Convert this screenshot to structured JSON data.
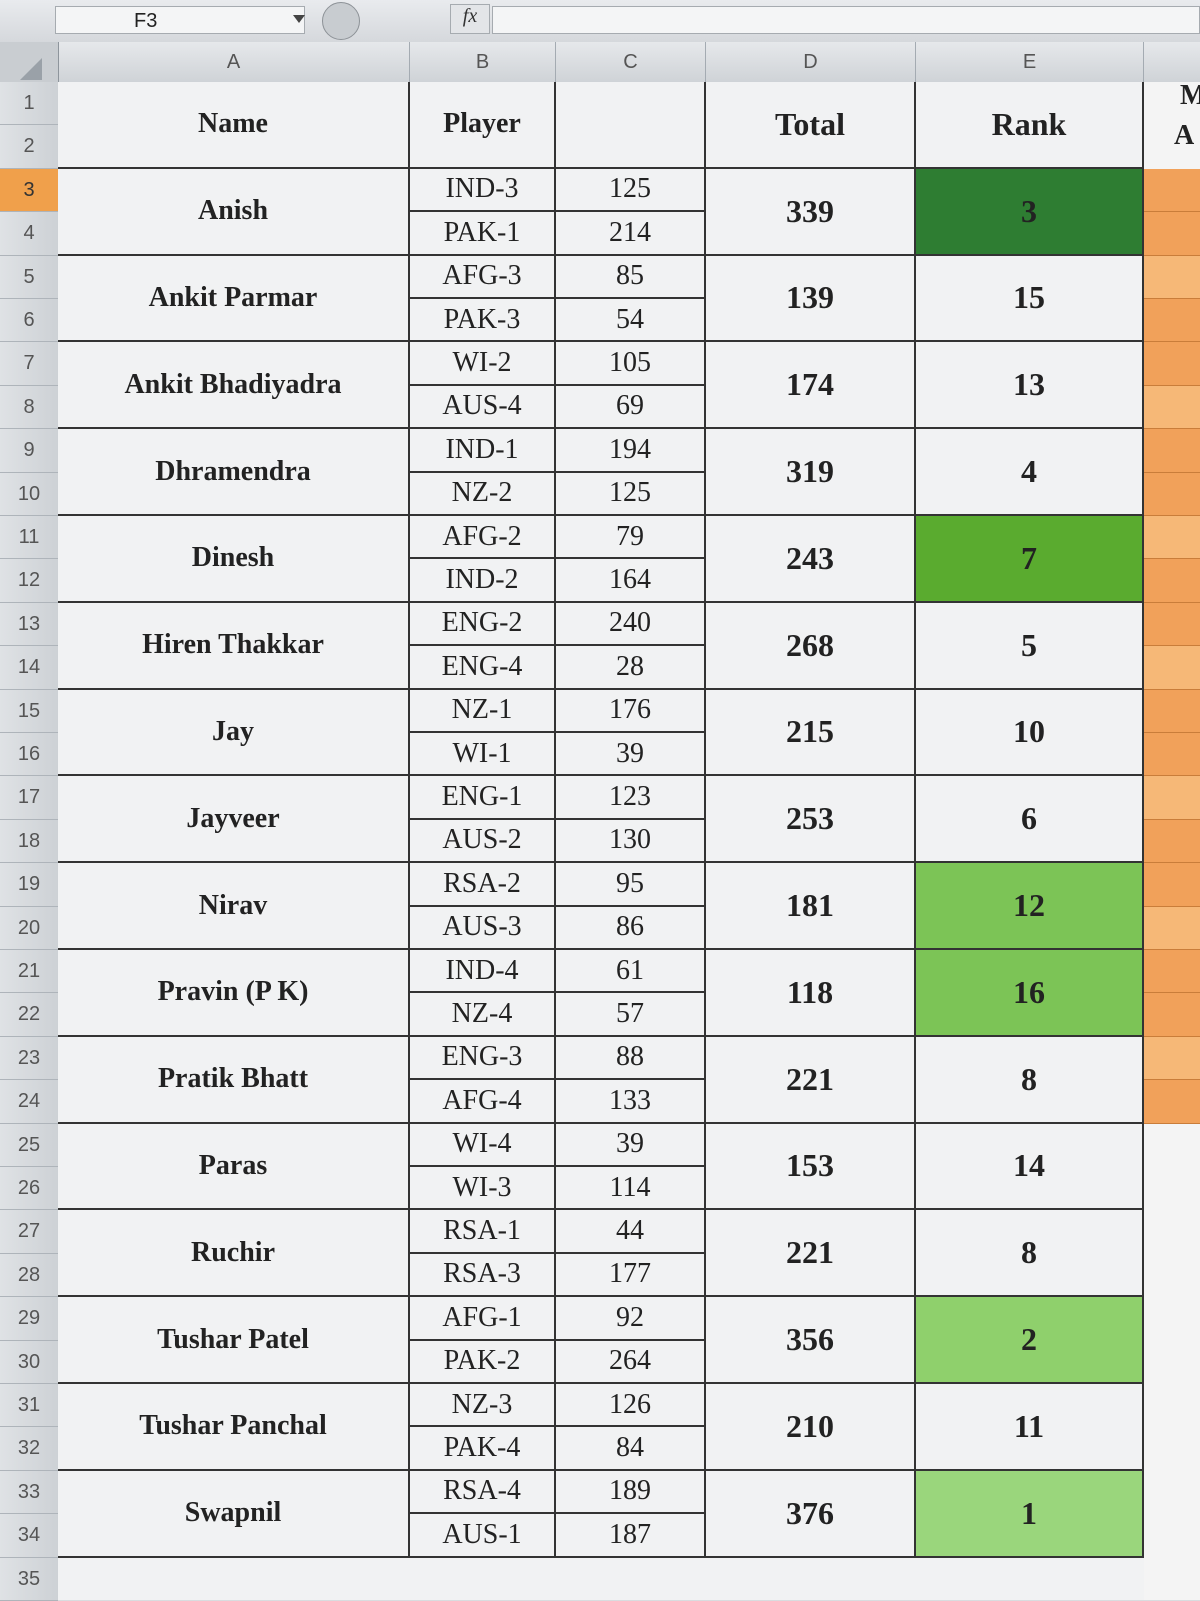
{
  "formula_bar": {
    "name_box": "F3",
    "fx": "fx"
  },
  "columns": [
    "A",
    "B",
    "C",
    "D",
    "E"
  ],
  "rows": [
    "1",
    "2",
    "3",
    "4",
    "5",
    "6",
    "7",
    "8",
    "9",
    "10",
    "11",
    "12",
    "13",
    "14",
    "15",
    "16",
    "17",
    "18",
    "19",
    "20",
    "21",
    "22",
    "23",
    "24",
    "25",
    "26",
    "27",
    "28",
    "29",
    "30",
    "31",
    "32",
    "33",
    "34",
    "35"
  ],
  "headers": {
    "name": "Name",
    "player": "Player",
    "total": "Total",
    "rank": "Rank",
    "f1": "M",
    "f2": "A"
  },
  "entries": [
    {
      "name": "Anish",
      "players": [
        "IND-3",
        "PAK-1"
      ],
      "scores": [
        "125",
        "214"
      ],
      "total": "339",
      "rank": "3",
      "rank_color": "#2e7d32"
    },
    {
      "name": "Ankit Parmar",
      "players": [
        "AFG-3",
        "PAK-3"
      ],
      "scores": [
        "85",
        "54"
      ],
      "total": "139",
      "rank": "15",
      "rank_color": ""
    },
    {
      "name": "Ankit Bhadiyadra",
      "players": [
        "WI-2",
        "AUS-4"
      ],
      "scores": [
        "105",
        "69"
      ],
      "total": "174",
      "rank": "13",
      "rank_color": ""
    },
    {
      "name": "Dhramendra",
      "players": [
        "IND-1",
        "NZ-2"
      ],
      "scores": [
        "194",
        "125"
      ],
      "total": "319",
      "rank": "4",
      "rank_color": ""
    },
    {
      "name": "Dinesh",
      "players": [
        "AFG-2",
        "IND-2"
      ],
      "scores": [
        "79",
        "164"
      ],
      "total": "243",
      "rank": "7",
      "rank_color": "#5aab2f"
    },
    {
      "name": "Hiren Thakkar",
      "players": [
        "ENG-2",
        "ENG-4"
      ],
      "scores": [
        "240",
        "28"
      ],
      "total": "268",
      "rank": "5",
      "rank_color": ""
    },
    {
      "name": "Jay",
      "players": [
        "NZ-1",
        "WI-1"
      ],
      "scores": [
        "176",
        "39"
      ],
      "total": "215",
      "rank": "10",
      "rank_color": ""
    },
    {
      "name": "Jayveer",
      "players": [
        "ENG-1",
        "AUS-2"
      ],
      "scores": [
        "123",
        "130"
      ],
      "total": "253",
      "rank": "6",
      "rank_color": ""
    },
    {
      "name": "Nirav",
      "players": [
        "RSA-2",
        "AUS-3"
      ],
      "scores": [
        "95",
        "86"
      ],
      "total": "181",
      "rank": "12",
      "rank_color": "#7cc456"
    },
    {
      "name": "Pravin (P K)",
      "players": [
        "IND-4",
        "NZ-4"
      ],
      "scores": [
        "61",
        "57"
      ],
      "total": "118",
      "rank": "16",
      "rank_color": "#7cc456"
    },
    {
      "name": "Pratik Bhatt",
      "players": [
        "ENG-3",
        "AFG-4"
      ],
      "scores": [
        "88",
        "133"
      ],
      "total": "221",
      "rank": "8",
      "rank_color": ""
    },
    {
      "name": "Paras",
      "players": [
        "WI-4",
        "WI-3"
      ],
      "scores": [
        "39",
        "114"
      ],
      "total": "153",
      "rank": "14",
      "rank_color": ""
    },
    {
      "name": "Ruchir",
      "players": [
        "RSA-1",
        "RSA-3"
      ],
      "scores": [
        "44",
        "177"
      ],
      "total": "221",
      "rank": "8",
      "rank_color": ""
    },
    {
      "name": "Tushar Patel",
      "players": [
        "AFG-1",
        "PAK-2"
      ],
      "scores": [
        "92",
        "264"
      ],
      "total": "356",
      "rank": "2",
      "rank_color": "#8fd06c"
    },
    {
      "name": "Tushar Panchal",
      "players": [
        "NZ-3",
        "PAK-4"
      ],
      "scores": [
        "126",
        "84"
      ],
      "total": "210",
      "rank": "11",
      "rank_color": ""
    },
    {
      "name": "Swapnil",
      "players": [
        "RSA-4",
        "AUS-1"
      ],
      "scores": [
        "189",
        "187"
      ],
      "total": "376",
      "rank": "1",
      "rank_color": "#9ad67c"
    }
  ]
}
